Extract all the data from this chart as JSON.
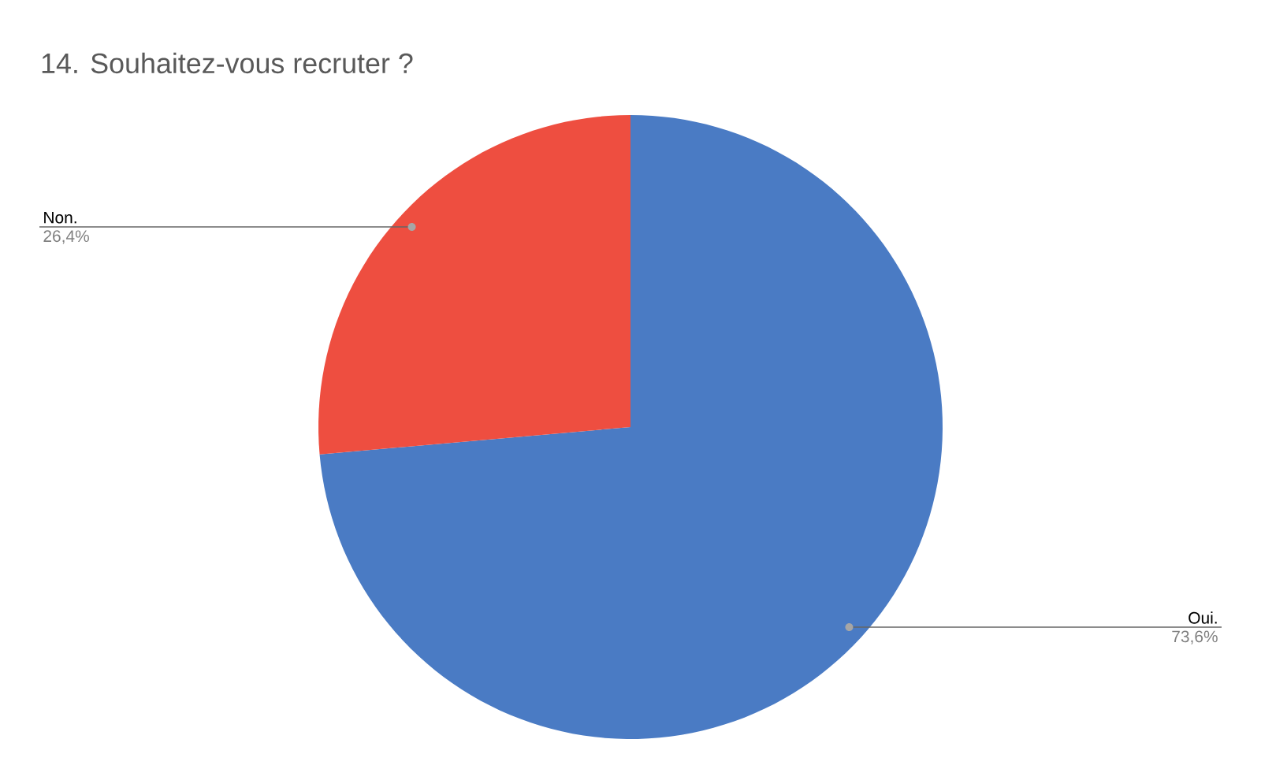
{
  "chart_data": {
    "type": "pie",
    "title": "14. Souhaitez-vous recruter ?",
    "categories": [
      "Oui.",
      "Non."
    ],
    "values": [
      73.6,
      26.4
    ],
    "value_labels": [
      "73,6%",
      "26,4%"
    ],
    "colors": [
      "#4a7bc4",
      "#ee4e40"
    ]
  }
}
